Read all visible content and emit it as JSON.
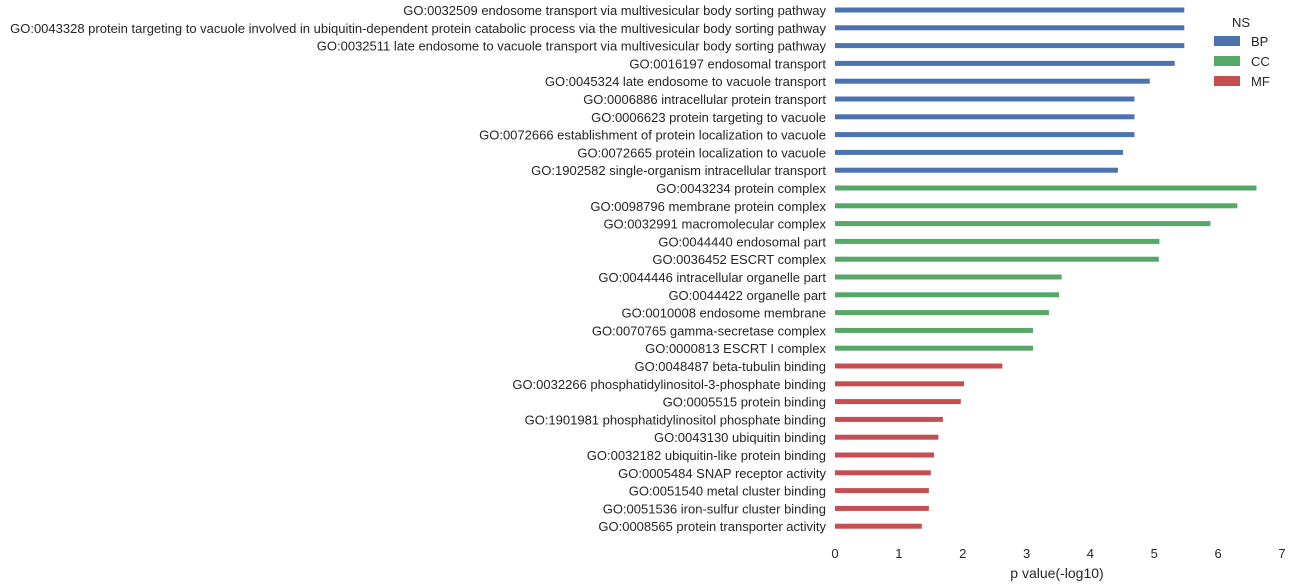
{
  "chart_data": {
    "type": "bar",
    "orientation": "horizontal",
    "xlabel": "p value(-log10)",
    "xlim": [
      0,
      7
    ],
    "xticks": [
      "0",
      "1",
      "2",
      "3",
      "4",
      "5",
      "6",
      "7"
    ],
    "grid": false,
    "legend": {
      "title": "NS",
      "placement": "top-right",
      "entries": [
        {
          "name": "BP",
          "color": "#4c72b0"
        },
        {
          "name": "CC",
          "color": "#55a868"
        },
        {
          "name": "MF",
          "color": "#c44e52"
        }
      ]
    },
    "bars": [
      {
        "label": "GO:0032509 endosome transport via multivesicular body sorting pathway",
        "value": 5.47,
        "ns": "BP"
      },
      {
        "label": "GO:0043328 protein targeting to vacuole involved in ubiquitin-dependent protein catabolic process via the multivesicular body sorting pathway",
        "value": 5.47,
        "ns": "BP"
      },
      {
        "label": "GO:0032511 late endosome to vacuole transport via multivesicular body sorting pathway",
        "value": 5.47,
        "ns": "BP"
      },
      {
        "label": "GO:0016197 endosomal transport",
        "value": 5.32,
        "ns": "BP"
      },
      {
        "label": "GO:0045324 late endosome to vacuole transport",
        "value": 4.93,
        "ns": "BP"
      },
      {
        "label": "GO:0006886 intracellular protein transport",
        "value": 4.69,
        "ns": "BP"
      },
      {
        "label": "GO:0006623 protein targeting to vacuole",
        "value": 4.69,
        "ns": "BP"
      },
      {
        "label": "GO:0072666 establishment of protein localization to vacuole",
        "value": 4.69,
        "ns": "BP"
      },
      {
        "label": "GO:0072665 protein localization to vacuole",
        "value": 4.51,
        "ns": "BP"
      },
      {
        "label": "GO:1902582 single-organism intracellular transport",
        "value": 4.43,
        "ns": "BP"
      },
      {
        "label": "GO:0043234 protein complex",
        "value": 6.6,
        "ns": "CC"
      },
      {
        "label": "GO:0098796 membrane protein complex",
        "value": 6.3,
        "ns": "CC"
      },
      {
        "label": "GO:0032991 macromolecular complex",
        "value": 5.88,
        "ns": "CC"
      },
      {
        "label": "GO:0044440 endosomal part",
        "value": 5.08,
        "ns": "CC"
      },
      {
        "label": "GO:0036452 ESCRT complex",
        "value": 5.07,
        "ns": "CC"
      },
      {
        "label": "GO:0044446 intracellular organelle part",
        "value": 3.55,
        "ns": "CC"
      },
      {
        "label": "GO:0044422 organelle part",
        "value": 3.51,
        "ns": "CC"
      },
      {
        "label": "GO:0010008 endosome membrane",
        "value": 3.35,
        "ns": "CC"
      },
      {
        "label": "GO:0070765 gamma-secretase complex",
        "value": 3.1,
        "ns": "CC"
      },
      {
        "label": "GO:0000813 ESCRT I complex",
        "value": 3.1,
        "ns": "CC"
      },
      {
        "label": "GO:0048487 beta-tubulin binding",
        "value": 2.62,
        "ns": "MF"
      },
      {
        "label": "GO:0032266 phosphatidylinositol-3-phosphate binding",
        "value": 2.02,
        "ns": "MF"
      },
      {
        "label": "GO:0005515 protein binding",
        "value": 1.97,
        "ns": "MF"
      },
      {
        "label": "GO:1901981 phosphatidylinositol phosphate binding",
        "value": 1.69,
        "ns": "MF"
      },
      {
        "label": "GO:0043130 ubiquitin binding",
        "value": 1.62,
        "ns": "MF"
      },
      {
        "label": "GO:0032182 ubiquitin-like protein binding",
        "value": 1.55,
        "ns": "MF"
      },
      {
        "label": "GO:0005484 SNAP receptor activity",
        "value": 1.5,
        "ns": "MF"
      },
      {
        "label": "GO:0051540 metal cluster binding",
        "value": 1.47,
        "ns": "MF"
      },
      {
        "label": "GO:0051536 iron-sulfur cluster binding",
        "value": 1.47,
        "ns": "MF"
      },
      {
        "label": "GO:0008565 protein transporter activity",
        "value": 1.36,
        "ns": "MF"
      }
    ]
  }
}
